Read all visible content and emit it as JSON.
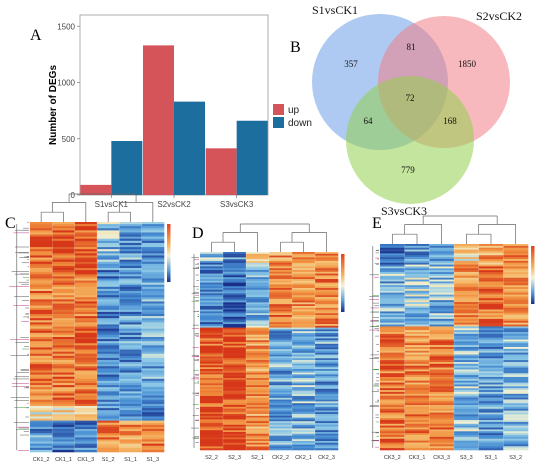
{
  "panels": {
    "a": "A",
    "b": "B",
    "c": "C",
    "d": "D",
    "e": "E"
  },
  "chart_data": [
    {
      "type": "bar",
      "panel": "A",
      "categories": [
        "S1vsCK1",
        "S2vsCK2",
        "S3vsCK3"
      ],
      "series": [
        {
          "name": "up",
          "values": [
            90,
            1330,
            415
          ]
        },
        {
          "name": "down",
          "values": [
            480,
            830,
            660
          ]
        }
      ],
      "ylabel": "Number of DEGs",
      "xlabel": "",
      "ylim": [
        0,
        1600
      ],
      "yticks": [
        0,
        500,
        1000,
        1500
      ],
      "legend_placement": "right",
      "colors": {
        "up": "#d4545a",
        "down": "#1c6e9e"
      },
      "grid": false
    },
    {
      "type": "venn",
      "panel": "B",
      "sets": [
        "S1vsCK1",
        "S2vsCK2",
        "S3vsCK3"
      ],
      "colors": {
        "S1vsCK1": "#6b9ee8",
        "S2vsCK2": "#f07f86",
        "S3vsCK3": "#93cf4c"
      },
      "regions": {
        "S1_only": 357,
        "S2_only": 1850,
        "S3_only": 779,
        "S1_S2": 81,
        "S1_S3": 64,
        "S2_S3": 168,
        "S1_S2_S3": 72
      }
    },
    {
      "type": "heatmap",
      "panel": "C",
      "columns": [
        "CK1_2",
        "CK1_1",
        "CK1_3",
        "S1_2",
        "S1_1",
        "S1_3"
      ]
    },
    {
      "type": "heatmap",
      "panel": "D",
      "columns": [
        "S2_2",
        "S2_3",
        "S2_1",
        "CK2_2",
        "CK2_1",
        "CK2_3"
      ]
    },
    {
      "type": "heatmap",
      "panel": "E",
      "columns": [
        "CK3_2",
        "CK3_1",
        "CK3_3",
        "S3_3",
        "S3_1",
        "S3_2"
      ]
    }
  ]
}
